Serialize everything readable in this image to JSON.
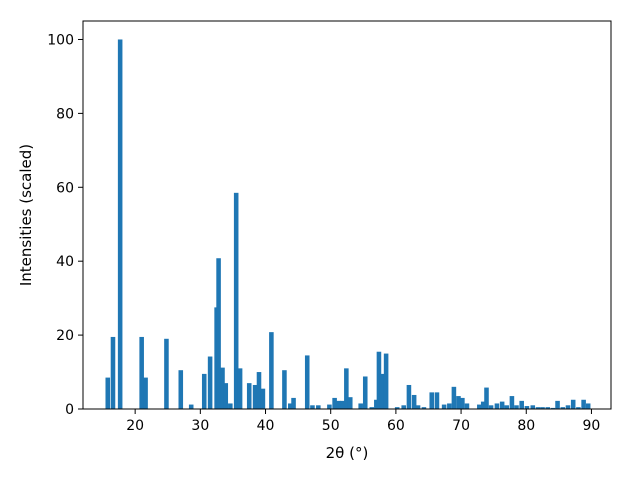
{
  "chart_data": {
    "type": "bar",
    "title": "",
    "xlabel": "2θ (°)",
    "ylabel": "Intensities (scaled)",
    "xlim": [
      12.0,
      93.0
    ],
    "ylim": [
      0,
      105
    ],
    "x_ticks": [
      20,
      30,
      40,
      50,
      60,
      70,
      80,
      90
    ],
    "y_ticks": [
      0,
      20,
      40,
      60,
      80,
      100
    ],
    "grid": false,
    "bar_color": "#1f77b4",
    "bar_width": 0.7,
    "series": [
      {
        "x": [
          15.8,
          16.6,
          17.7,
          21.0,
          21.6,
          24.8,
          27.0,
          28.6,
          30.6,
          31.5,
          32.5,
          32.8,
          33.4,
          33.9,
          34.6,
          35.5,
          36.1,
          37.5,
          38.4,
          39.0,
          39.6,
          40.9,
          42.9,
          43.8,
          44.3,
          46.4,
          47.2,
          48.1,
          49.8,
          50.6,
          51.2,
          51.8,
          52.4,
          53.0,
          54.6,
          55.3,
          56.3,
          57.0,
          57.4,
          57.9,
          58.5,
          60.2,
          61.2,
          62.0,
          62.8,
          63.4,
          64.3,
          65.5,
          66.3,
          67.4,
          68.2,
          68.9,
          69.6,
          70.2,
          70.9,
          72.8,
          73.4,
          73.9,
          74.6,
          75.5,
          76.3,
          77.0,
          77.8,
          78.5,
          79.3,
          80.1,
          81.0,
          81.8,
          82.5,
          83.3,
          84.1,
          84.8,
          85.6,
          86.4,
          87.2,
          88.0,
          88.8,
          89.5
        ],
        "values": [
          8.5,
          19.5,
          100,
          19.5,
          8.5,
          19.0,
          10.5,
          1.2,
          9.5,
          14.2,
          27.5,
          40.8,
          11.2,
          7.0,
          1.5,
          58.5,
          11.0,
          7.0,
          6.5,
          10.0,
          5.5,
          20.8,
          10.5,
          1.5,
          3.0,
          14.5,
          1.0,
          1.0,
          1.2,
          3.0,
          2.2,
          2.2,
          11.0,
          3.2,
          1.5,
          8.8,
          0.5,
          2.5,
          15.5,
          9.5,
          15.0,
          0.5,
          1.0,
          6.5,
          3.8,
          1.0,
          0.5,
          4.5,
          4.5,
          1.2,
          1.5,
          6.0,
          3.5,
          3.0,
          1.5,
          1.2,
          2.0,
          5.8,
          1.0,
          1.5,
          2.0,
          1.0,
          3.5,
          1.0,
          2.2,
          0.8,
          1.0,
          0.5,
          0.5,
          0.5,
          0.3,
          2.2,
          0.5,
          1.0,
          2.5,
          0.5,
          2.5,
          1.5
        ]
      }
    ]
  }
}
